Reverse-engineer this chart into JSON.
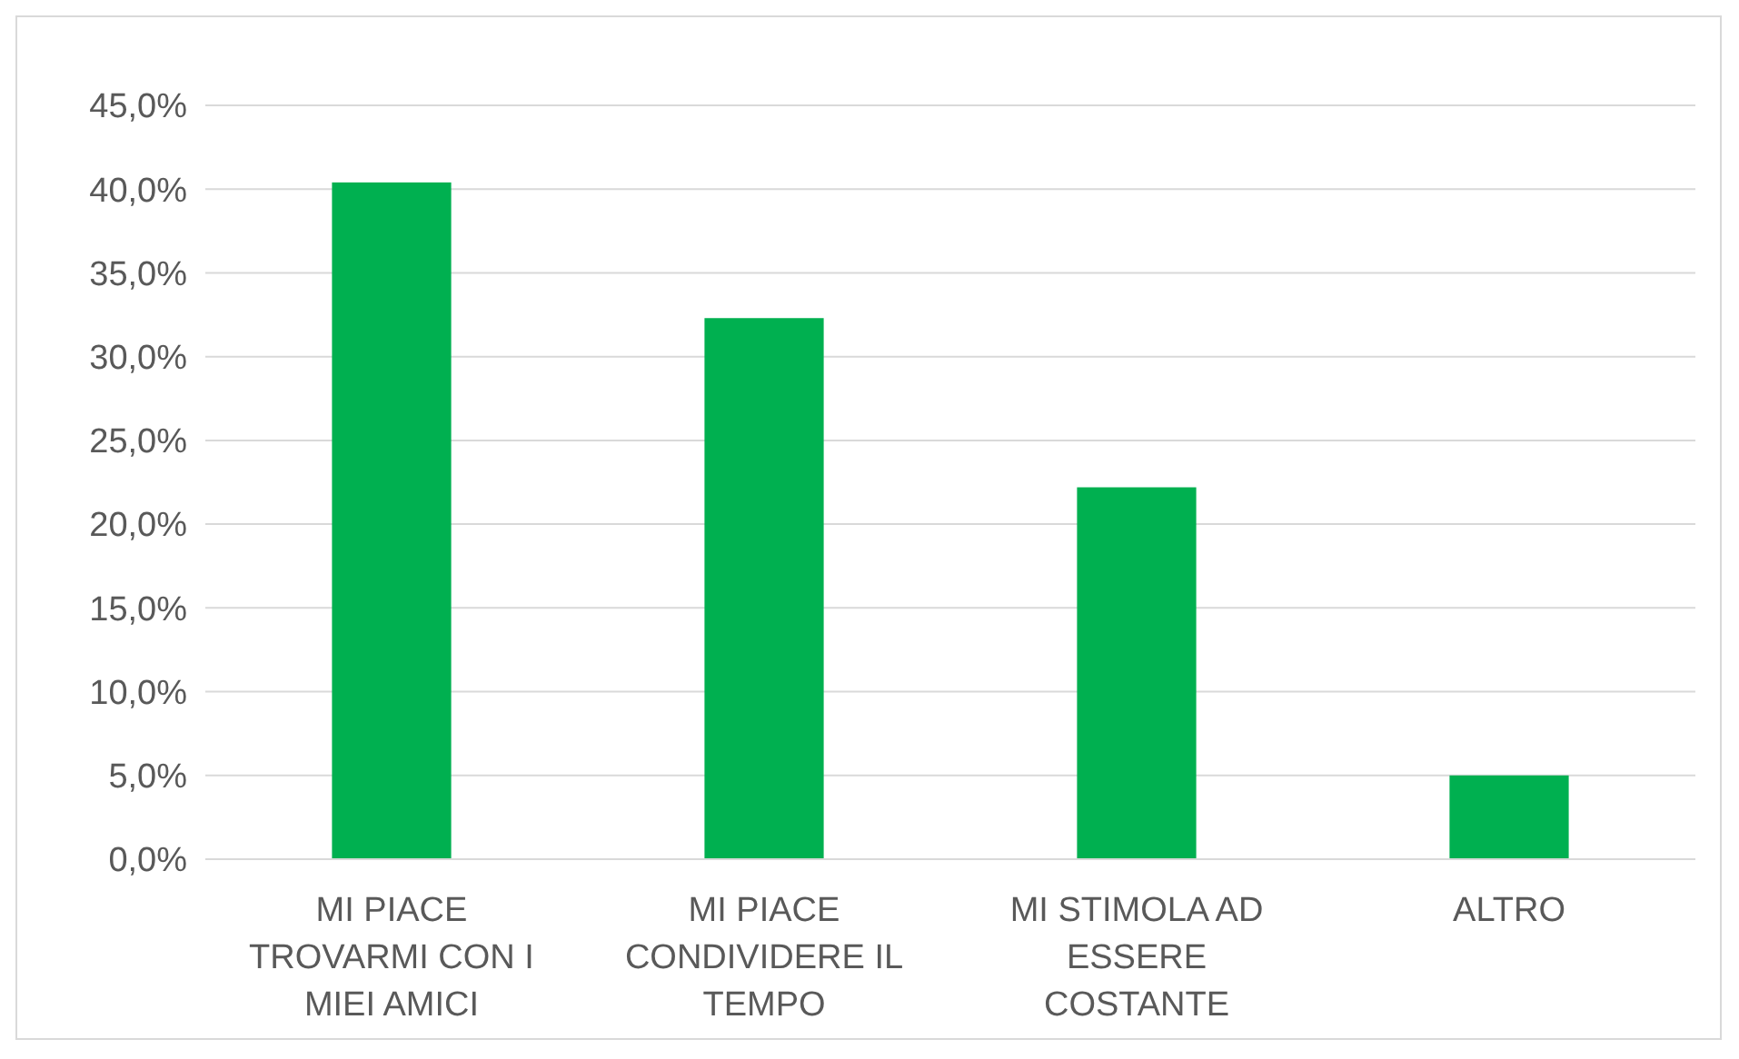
{
  "chart_data": {
    "type": "bar",
    "categories": [
      "MI PIACE TROVARMI CON I MIEI AMICI",
      "MI PIACE CONDIVIDERE IL TEMPO",
      "MI STIMOLA AD ESSERE COSTANTE",
      "ALTRO"
    ],
    "values": [
      40.4,
      32.3,
      22.2,
      5.0
    ],
    "color": "#00b050",
    "ylim": [
      0,
      45
    ],
    "yticks": [
      {
        "value": 0,
        "label": "0,0%"
      },
      {
        "value": 5,
        "label": "5,0%"
      },
      {
        "value": 10,
        "label": "10,0%"
      },
      {
        "value": 15,
        "label": "15,0%"
      },
      {
        "value": 20,
        "label": "20,0%"
      },
      {
        "value": 25,
        "label": "25,0%"
      },
      {
        "value": 30,
        "label": "30,0%"
      },
      {
        "value": 35,
        "label": "35,0%"
      },
      {
        "value": 40,
        "label": "40,0%"
      },
      {
        "value": 45,
        "label": "45,0%"
      }
    ],
    "grid": "y"
  }
}
